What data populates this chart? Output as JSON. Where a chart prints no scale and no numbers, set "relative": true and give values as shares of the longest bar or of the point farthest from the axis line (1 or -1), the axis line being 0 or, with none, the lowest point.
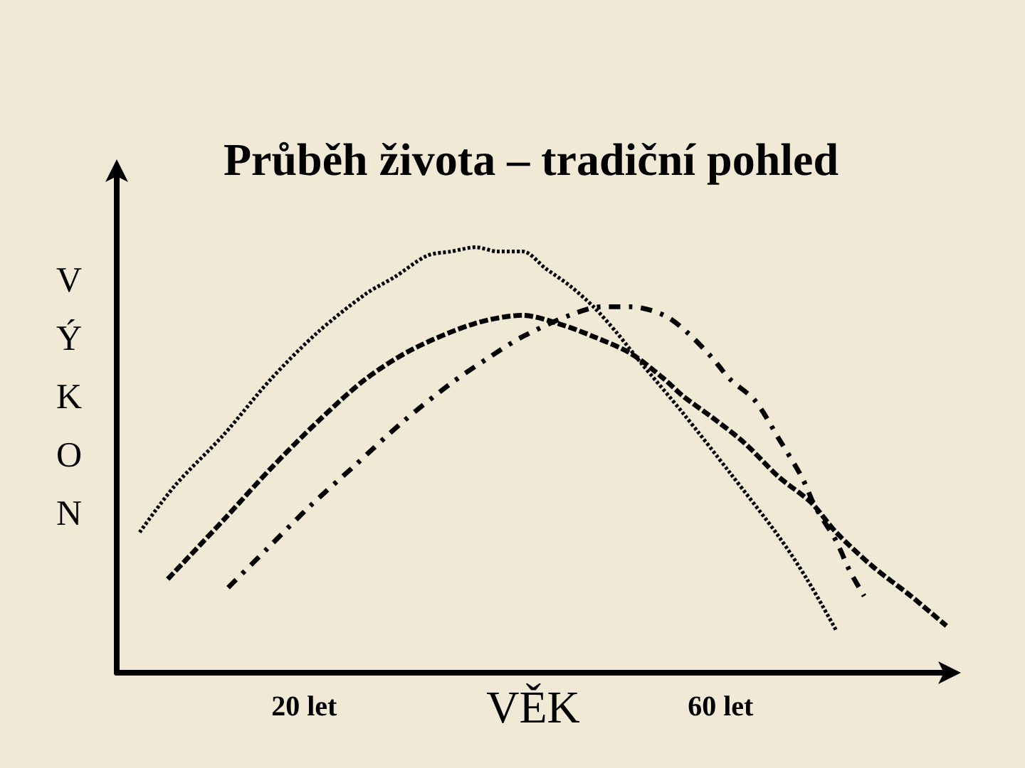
{
  "chart_data": {
    "type": "line",
    "title": "Průběh života – tradiční pohled",
    "xlabel": "VĚK",
    "ylabel": "VÝKON",
    "relative": true,
    "xlim": [
      2,
      82
    ],
    "xticks": [
      {
        "value": 20,
        "label": "20 let"
      },
      {
        "value": 60,
        "label": "60 let"
      }
    ],
    "series": [
      {
        "color": "#000000",
        "line_style": "dotted",
        "x": [
          4.2,
          7.6,
          12.3,
          16.8,
          21.3,
          25.9,
          28.7,
          31.8,
          34.1,
          36.5,
          38.6,
          41.0,
          43.2,
          45.5,
          47.8,
          50.0,
          52.3,
          56.4,
          60.9,
          65.6,
          68.3,
          71.1
        ],
        "values": [
          0.33,
          0.44,
          0.56,
          0.69,
          0.8,
          0.89,
          0.93,
          0.98,
          0.99,
          1.0,
          0.99,
          0.99,
          0.95,
          0.91,
          0.86,
          0.8,
          0.73,
          0.61,
          0.47,
          0.32,
          0.22,
          0.1
        ]
      },
      {
        "color": "#000000",
        "line_style": "dashed",
        "x": [
          6.9,
          12.3,
          16.8,
          21.3,
          25.9,
          30.4,
          36.3,
          41.0,
          44.5,
          47.8,
          51.4,
          54.6,
          56.4,
          59.2,
          62.3,
          65.6,
          68.7,
          71.1,
          74.6,
          78.3,
          81.7
        ],
        "values": [
          0.22,
          0.36,
          0.48,
          0.59,
          0.69,
          0.76,
          0.82,
          0.84,
          0.82,
          0.79,
          0.75,
          0.69,
          0.65,
          0.6,
          0.54,
          0.46,
          0.4,
          0.33,
          0.25,
          0.18,
          0.11
        ]
      },
      {
        "color": "#000000",
        "line_style": "dashdot",
        "x": [
          12.7,
          16.4,
          20.5,
          25.0,
          29.5,
          34.1,
          37.7,
          41.0,
          45.5,
          48.6,
          51.4,
          54.6,
          56.8,
          59.2,
          60.9,
          63.3,
          65.6,
          67.8,
          69.1,
          71.1,
          72.4,
          73.8
        ],
        "values": [
          0.2,
          0.29,
          0.39,
          0.49,
          0.59,
          0.68,
          0.74,
          0.79,
          0.84,
          0.86,
          0.86,
          0.84,
          0.8,
          0.74,
          0.69,
          0.64,
          0.55,
          0.46,
          0.39,
          0.31,
          0.24,
          0.18
        ]
      }
    ]
  }
}
